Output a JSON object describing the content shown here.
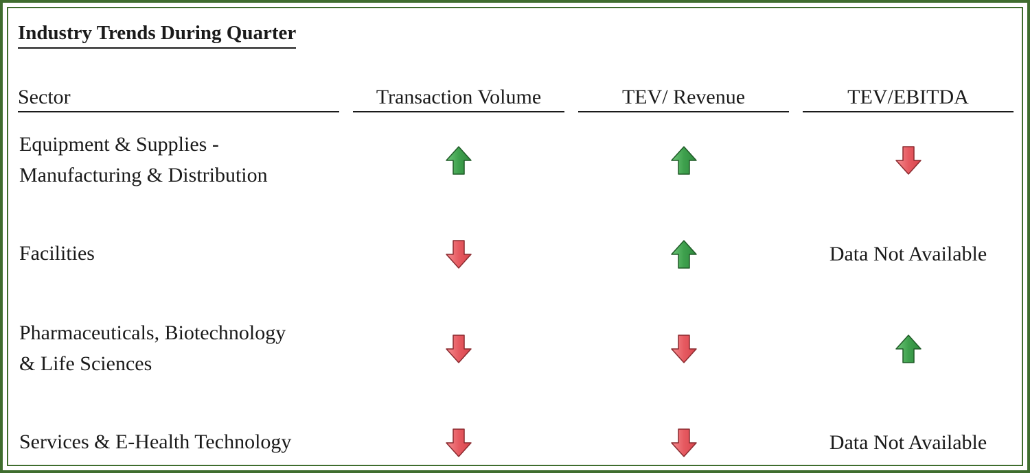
{
  "title": "Industry Trends During Quarter",
  "headers": {
    "sector": "Sector",
    "transaction_volume": "Transaction Volume",
    "tev_revenue": "TEV/ Revenue",
    "tev_ebitda": "TEV/EBITDA"
  },
  "colors": {
    "frame": "#3f6d2e",
    "up": "#4caf5a",
    "down": "#e8646a"
  },
  "rows": [
    {
      "sector_line1": "Equipment & Supplies -",
      "sector_line2": "Manufacturing & Distribution",
      "transaction_volume": "up-arrow-icon",
      "tev_revenue": "up-arrow-icon",
      "tev_ebitda": "down-arrow-icon"
    },
    {
      "sector_line1": "Facilities",
      "transaction_volume": "down-arrow-icon",
      "tev_revenue": "up-arrow-icon",
      "tev_ebitda_text": "Data Not Available"
    },
    {
      "sector_line1": "Pharmaceuticals, Biotechnology",
      "sector_line2": "& Life Sciences",
      "transaction_volume": "down-arrow-icon",
      "tev_revenue": "down-arrow-icon",
      "tev_ebitda": "up-arrow-icon"
    },
    {
      "sector_line1": "Services & E-Health Technology",
      "transaction_volume": "down-arrow-icon",
      "tev_revenue": "down-arrow-icon",
      "tev_ebitda_text": "Data Not Available"
    }
  ]
}
